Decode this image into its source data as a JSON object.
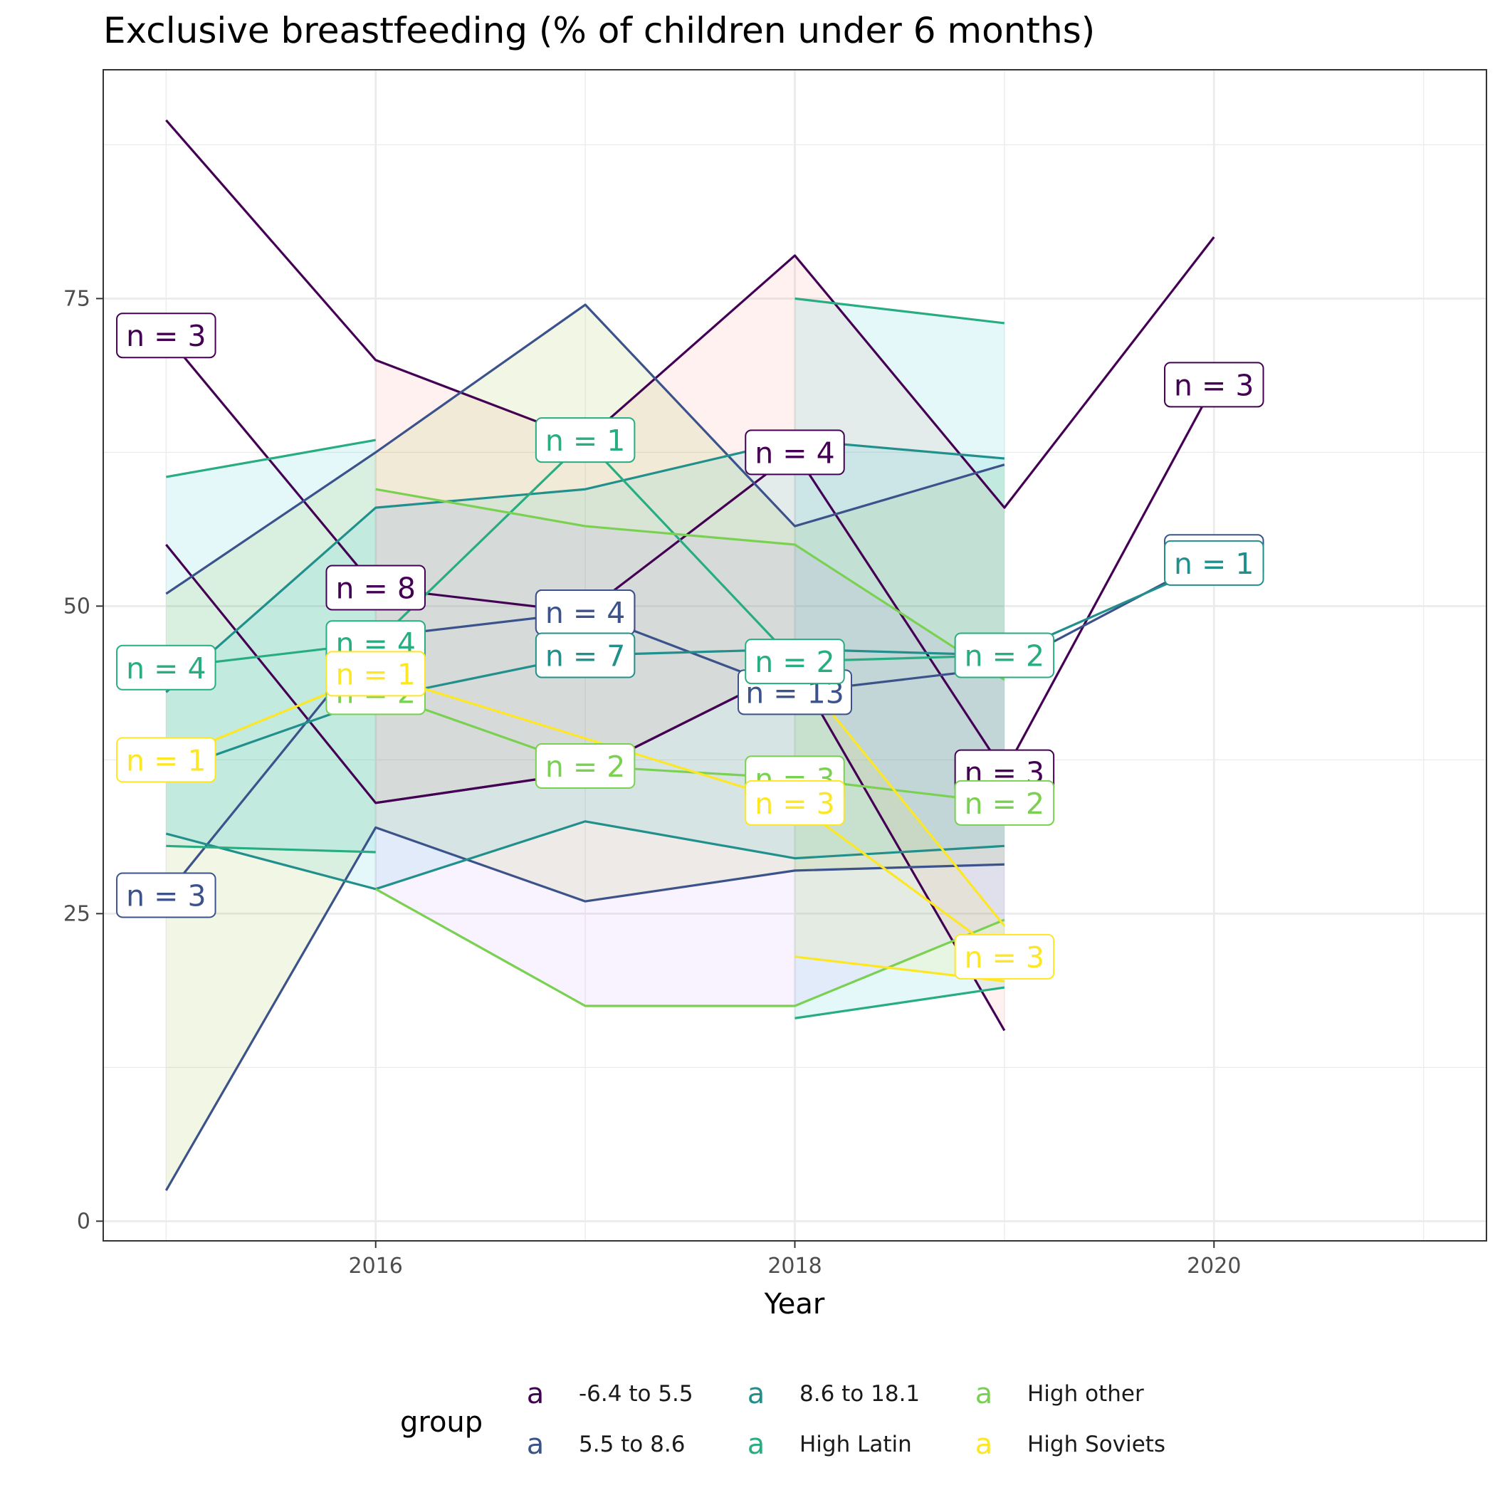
{
  "chart_data": {
    "type": "line",
    "title": "Exclusive breastfeeding (% of children under 6 months)",
    "xlabel": "Year",
    "ylabel": "",
    "xlim": [
      2014.7,
      2021.3
    ],
    "ylim": [
      -1.6,
      93.6
    ],
    "x_ticks": [
      2016,
      2018,
      2020
    ],
    "y_ticks": [
      0,
      25,
      50,
      75
    ],
    "x_minor": [
      2015,
      2017,
      2019,
      2021
    ],
    "y_minor": [
      12.5,
      37.5,
      62.5,
      87.5
    ],
    "grid": true,
    "legend": {
      "title": "group",
      "position": "bottom",
      "key_glyph": "a",
      "items": [
        "-6.4 to 5.5",
        "5.5 to 8.6",
        "8.6 to 18.1",
        "High Latin",
        "High other",
        "High Soviets"
      ]
    },
    "series": [
      {
        "name": "-6.4 to 5.5",
        "color": "#440154",
        "fill": "#F8766D",
        "x": [
          2015,
          2016,
          2017,
          2018,
          2019,
          2020
        ],
        "lower": [
          null,
          34,
          36.5,
          45,
          15.5,
          null
        ],
        "upper": [
          89.5,
          70,
          63.5,
          78.5,
          58,
          80
        ],
        "mean": [
          72,
          51.5,
          49.5,
          62.5,
          36.5,
          68
        ],
        "n": [
          3,
          8,
          4,
          4,
          3,
          3
        ],
        "extra_lines": [
          [
            [
              2015,
              55
            ],
            [
              2016,
              34
            ],
            [
              2017,
              36.5
            ],
            [
              2018,
              45
            ]
          ]
        ]
      },
      {
        "name": "5.5 to 8.6",
        "color": "#3B528B",
        "fill": "#7CAE00",
        "x": [
          2015,
          2016,
          2017,
          2018,
          2019,
          2020
        ],
        "lower": [
          2.5,
          32,
          26,
          28.5,
          29,
          null
        ],
        "upper": [
          51,
          62.5,
          74.5,
          56.5,
          61.5,
          null
        ],
        "mean": [
          26.5,
          47.5,
          49.5,
          43,
          45,
          54
        ],
        "n": [
          3,
          null,
          4,
          13,
          null,
          1
        ]
      },
      {
        "name": "8.6 to 18.1",
        "color": "#21908C",
        "fill": "#00BFC4",
        "x": [
          2015,
          2016,
          2017,
          2018,
          2019,
          2020
        ],
        "lower": [
          31.5,
          27,
          32.5,
          29.5,
          30.5,
          null
        ],
        "upper": [
          43,
          58,
          59.5,
          63.5,
          62,
          null
        ],
        "mean": [
          36.5,
          42.5,
          46,
          46.5,
          46,
          53.5
        ],
        "n": [
          null,
          null,
          7,
          null,
          null,
          1
        ]
      },
      {
        "name": "High Latin",
        "color": "#27AD81",
        "fill": "#00BFC4",
        "x": [
          2015,
          2016,
          2017,
          2018,
          2019
        ],
        "lower": [
          30.5,
          30,
          null,
          16.5,
          19
        ],
        "upper": [
          60.5,
          63.5,
          null,
          75,
          73
        ],
        "mean": [
          45,
          47,
          63.5,
          45.5,
          46
        ],
        "n": [
          4,
          4,
          1,
          2,
          2
        ]
      },
      {
        "name": "High other",
        "color": "#7AD151",
        "fill": "#C77CFF",
        "x": [
          2016,
          2017,
          2018,
          2019
        ],
        "lower": [
          27,
          17.5,
          17.5,
          24.5
        ],
        "upper": [
          59.5,
          56.5,
          55,
          44
        ],
        "mean": [
          43,
          37,
          36,
          34
        ],
        "n": [
          2,
          2,
          3,
          2
        ]
      },
      {
        "name": "High Soviets",
        "color": "#FDE725",
        "fill": "#FDE725",
        "x": [
          2015,
          2016,
          2018,
          2019
        ],
        "lower": [
          null,
          null,
          21.5,
          19.5
        ],
        "upper": [
          null,
          null,
          45,
          24
        ],
        "mean": [
          37.5,
          44.5,
          34,
          21.5
        ],
        "n": [
          1,
          1,
          3,
          3
        ]
      }
    ]
  }
}
